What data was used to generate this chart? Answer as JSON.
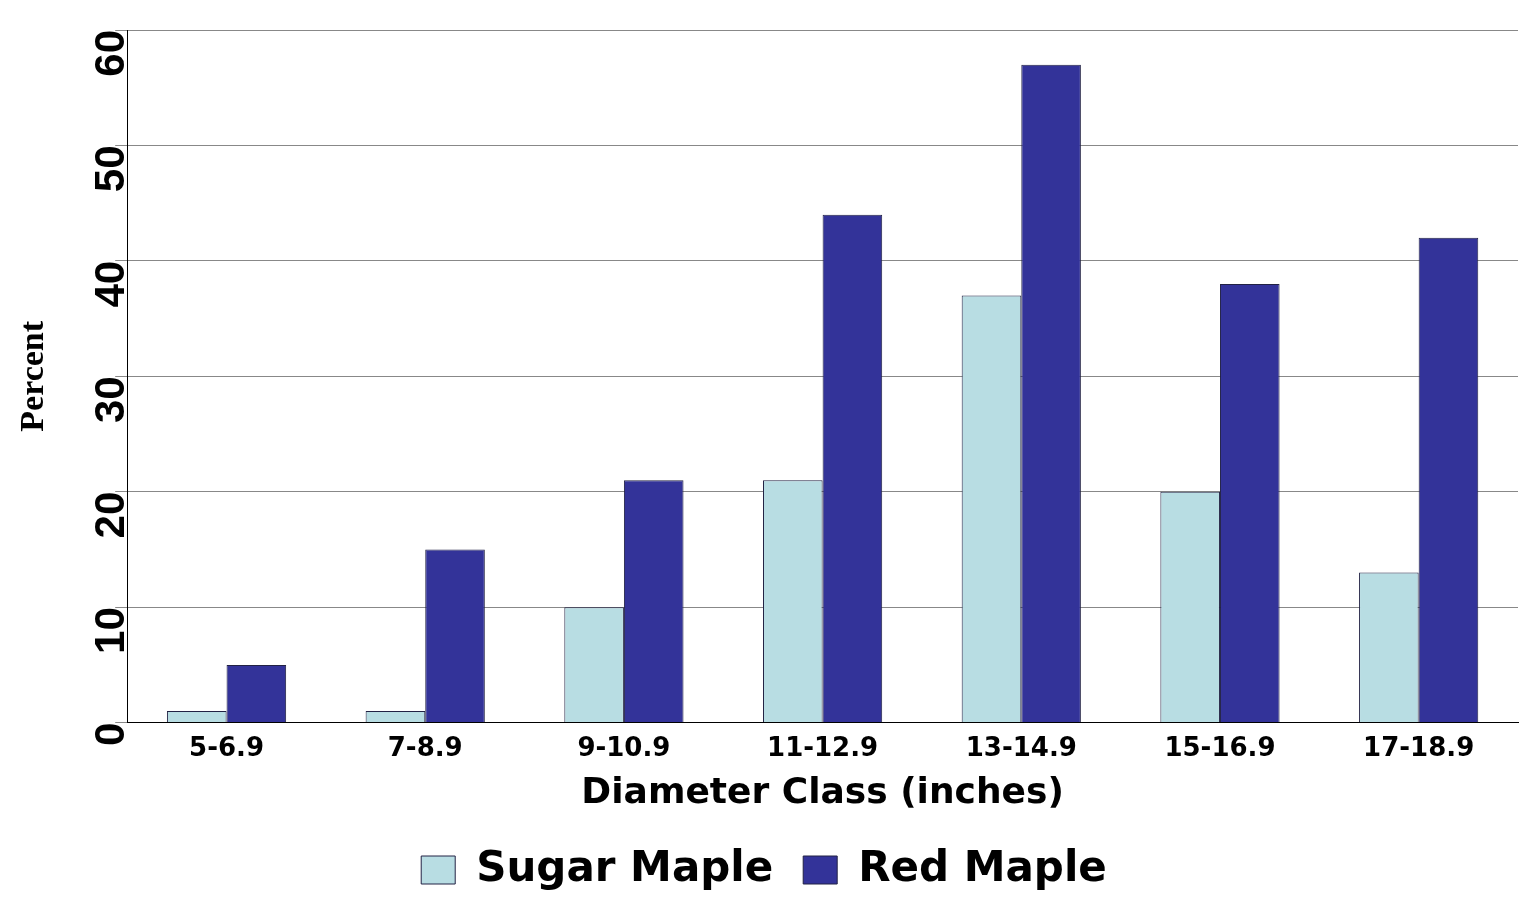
{
  "chart_data": {
    "type": "bar",
    "xlabel": "Diameter Class (inches)",
    "ylabel": "Percent",
    "categories": [
      "5-6.9",
      "7-8.9",
      "9-10.9",
      "11-12.9",
      "13-14.9",
      "15-16.9",
      "17-18.9"
    ],
    "series": [
      {
        "name": "Sugar Maple",
        "color": "#b8dde3",
        "values": [
          1,
          1,
          10,
          21,
          37,
          20,
          13
        ]
      },
      {
        "name": "Red Maple",
        "color": "#333399",
        "values": [
          5,
          15,
          21,
          44,
          57,
          38,
          42
        ]
      }
    ],
    "ylim": [
      0,
      60
    ],
    "yticks": [
      0,
      10,
      20,
      30,
      40,
      50,
      60
    ],
    "grid": "y",
    "legend": "bottom"
  }
}
